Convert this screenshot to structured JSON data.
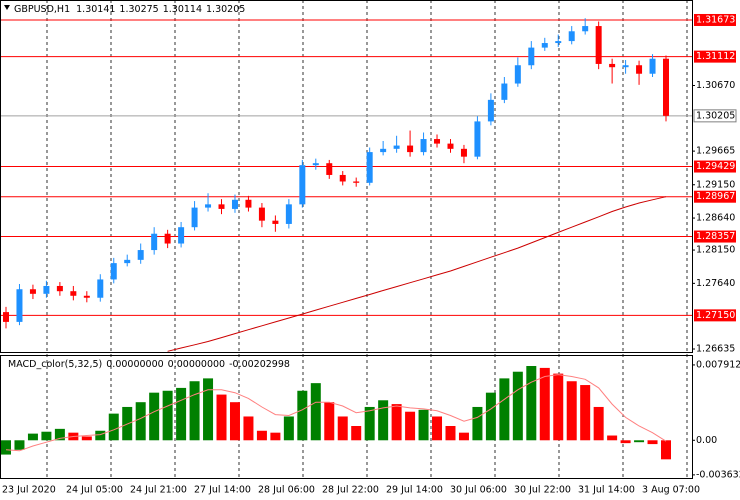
{
  "chart_data": [
    {
      "type": "candlestick",
      "title": "GBPUSD,H1",
      "quote": [
        1.30141,
        1.30275,
        1.30114,
        1.30205
      ],
      "open": [
        1.272,
        1.2705,
        1.2755,
        1.2748,
        1.276,
        1.2752,
        1.2745,
        1.2742,
        1.277,
        1.2795,
        1.28,
        1.2815,
        1.284,
        1.2825,
        1.285,
        1.288,
        1.2885,
        1.2878,
        1.2892,
        1.288,
        1.286,
        1.2855,
        1.2885,
        1.2945,
        1.2948,
        1.293,
        1.292,
        1.2918,
        1.2965,
        1.297,
        1.2975,
        1.2965,
        1.2985,
        1.2978,
        1.297,
        1.2958,
        1.3012,
        1.3045,
        1.307,
        1.3098,
        1.3125,
        1.3132,
        1.3135,
        1.315,
        1.3158,
        1.31,
        1.3095,
        1.3098,
        1.3085,
        1.3108
      ],
      "high": [
        1.2728,
        1.2763,
        1.2762,
        1.2768,
        1.2766,
        1.276,
        1.2752,
        1.2778,
        1.2803,
        1.2808,
        1.2825,
        1.285,
        1.2846,
        1.2858,
        1.289,
        1.2902,
        1.2893,
        1.29,
        1.2898,
        1.2887,
        1.2868,
        1.2893,
        1.2953,
        1.2955,
        1.2953,
        1.2936,
        1.2926,
        1.2972,
        1.2982,
        1.299,
        1.2998,
        1.2995,
        1.2992,
        1.2985,
        1.2976,
        1.302,
        1.3055,
        1.308,
        1.311,
        1.3135,
        1.314,
        1.3145,
        1.3158,
        1.317,
        1.3165,
        1.3108,
        1.3106,
        1.3105,
        1.3115,
        1.3113
      ],
      "low": [
        1.2695,
        1.27,
        1.274,
        1.2742,
        1.2745,
        1.2738,
        1.2735,
        1.2736,
        1.2764,
        1.279,
        1.2794,
        1.2808,
        1.2818,
        1.2819,
        1.2845,
        1.2874,
        1.287,
        1.2872,
        1.2874,
        1.285,
        1.2843,
        1.2848,
        1.288,
        1.2938,
        1.2924,
        1.2914,
        1.2912,
        1.2914,
        1.296,
        1.2964,
        1.2958,
        1.296,
        1.2972,
        1.2964,
        1.2948,
        1.2954,
        1.3006,
        1.304,
        1.3065,
        1.3092,
        1.312,
        1.3126,
        1.313,
        1.3145,
        1.3092,
        1.307,
        1.3085,
        1.3068,
        1.308,
        1.3012
      ],
      "close": [
        1.2705,
        1.2755,
        1.2748,
        1.276,
        1.2752,
        1.2745,
        1.2742,
        1.277,
        1.2795,
        1.28,
        1.2815,
        1.284,
        1.2825,
        1.285,
        1.288,
        1.2885,
        1.2878,
        1.2892,
        1.288,
        1.286,
        1.2855,
        1.2885,
        1.2945,
        1.2948,
        1.293,
        1.292,
        1.2918,
        1.2965,
        1.297,
        1.2975,
        1.2965,
        1.2985,
        1.2978,
        1.297,
        1.2958,
        1.3012,
        1.3045,
        1.307,
        1.3098,
        1.3125,
        1.3132,
        1.3135,
        1.315,
        1.3158,
        1.31,
        1.3095,
        1.3098,
        1.3085,
        1.3108,
        1.30205
      ],
      "up_color": "#1e90ff",
      "down_color": "#ff0000",
      "ma": {
        "color": "#cc0000",
        "values": [
          null,
          null,
          null,
          null,
          null,
          null,
          null,
          null,
          null,
          null,
          null,
          null,
          1.266,
          1.2665,
          1.267,
          1.2675,
          1.2681,
          1.2687,
          1.2693,
          1.2699,
          1.2705,
          1.2711,
          1.2717,
          1.2723,
          1.2729,
          1.2735,
          1.2741,
          1.2747,
          1.2753,
          1.2759,
          1.2765,
          1.2771,
          1.2777,
          1.2783,
          1.279,
          1.2797,
          1.2804,
          1.2811,
          1.2818,
          1.2826,
          1.2834,
          1.2842,
          1.285,
          1.2858,
          1.2866,
          1.2874,
          1.2881,
          1.2887,
          1.2892,
          1.28967
        ]
      },
      "ylim": [
        1.26589,
        1.31979
      ],
      "yticks": [
        {
          "value": 1.3067,
          "label": "1.30670"
        },
        1.29665,
        {
          "value": 1.2915,
          "label": "1.29150"
        },
        {
          "value": 1.2864,
          "label": "1.28640"
        },
        {
          "value": 1.2815,
          "label": "1.28150"
        },
        {
          "value": 1.2764,
          "label": "1.27640"
        },
        1.26635
      ],
      "levels": [
        1.31673,
        1.31112,
        1.29429,
        1.28967,
        1.28357,
        {
          "value": 1.2715,
          "label": "1.27150"
        }
      ],
      "level_color": "#ff0000",
      "current_price": 1.30205,
      "x_labels": [
        "23 Jul 2020",
        "24 Jul 05:00",
        "24 Jul 21:00",
        "27 Jul 14:00",
        "28 Jul 06:00",
        "28 Jul 22:00",
        "29 Jul 14:00",
        "30 Jul 06:00",
        "30 Jul 22:00",
        "31 Jul 14:00",
        "3 Aug 07:00"
      ]
    },
    {
      "type": "macd",
      "title": "MACD_color(5,32,5)",
      "indicator_values": [
        {
          "value": 0,
          "label": "0.00000000"
        },
        {
          "value": 0,
          "label": "0.00000000"
        },
        -0.00202998
      ],
      "values": [
        -0.0015,
        -0.001,
        0.0007,
        0.0009,
        0.0012,
        0.0008,
        0.0004,
        0.001,
        0.0028,
        0.0035,
        0.004,
        0.005,
        0.0052,
        0.0055,
        0.0062,
        0.0065,
        0.0048,
        0.004,
        0.0025,
        0.001,
        0.0008,
        0.0025,
        0.0052,
        0.006,
        0.004,
        0.0025,
        0.0015,
        0.0035,
        0.0042,
        0.0038,
        0.003,
        0.0032,
        0.0025,
        0.0015,
        0.0008,
        0.0035,
        0.005,
        0.0065,
        0.0072,
        0.0078,
        0.0076,
        0.007,
        0.0062,
        0.0058,
        0.0035,
        0.0005,
        -0.0003,
        -0.0002,
        -0.0004,
        -0.002
      ],
      "up_color": "#008000",
      "down_color": "#ff0000",
      "signal": {
        "color": "#ff8080",
        "values": [
          -0.001,
          -0.0011,
          -0.0006,
          -0.0002,
          0.0002,
          0.0004,
          0.0005,
          0.0006,
          0.0011,
          0.0017,
          0.0023,
          0.003,
          0.0036,
          0.0042,
          0.0048,
          0.0053,
          0.0053,
          0.005,
          0.0044,
          0.0035,
          0.0027,
          0.0026,
          0.0032,
          0.004,
          0.004,
          0.0036,
          0.0029,
          0.0031,
          0.0034,
          0.0036,
          0.0034,
          0.0033,
          0.0031,
          0.0026,
          0.002,
          0.0024,
          0.0033,
          0.0043,
          0.0053,
          0.0061,
          0.0067,
          0.0069,
          0.0067,
          0.0064,
          0.0055,
          0.0038,
          0.0024,
          0.0015,
          0.0008,
          -0.0001
        ]
      },
      "ylim": [
        -0.00396,
        0.00885
      ],
      "yticks": [
        0.0079123,
        {
          "value": 0,
          "label": "0.00"
        },
        -0.003632
      ]
    }
  ]
}
